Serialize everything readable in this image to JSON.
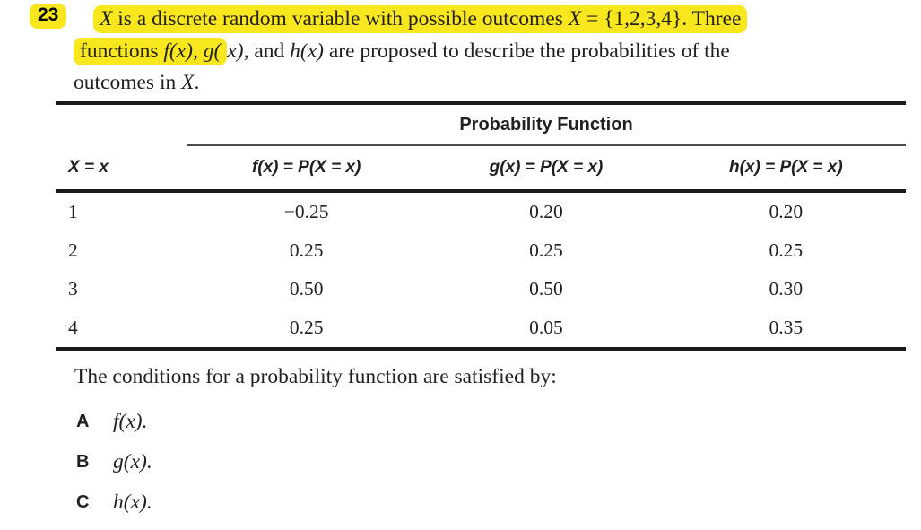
{
  "colors": {
    "highlight": "#f8e71c",
    "text": "#231f20",
    "rule": "#1a1a1a"
  },
  "question": {
    "number": "23",
    "line1": [
      {
        "t": "X"
      },
      {
        "t": " is a discrete random variable with possible outcomes "
      },
      {
        "t": "X"
      },
      {
        "t": " = {1,2,3,4}. Three"
      }
    ],
    "line2_highlighted": [
      {
        "t": "functions "
      },
      {
        "t": "f(x)"
      },
      {
        "t": ", "
      },
      {
        "t": "g("
      }
    ],
    "line2_rest": [
      {
        "t": "x)"
      },
      {
        "t": ", and "
      },
      {
        "t": "h(x)"
      },
      {
        "t": " are proposed to describe the probabilities of the"
      }
    ],
    "line3": [
      {
        "t": "outcomes in "
      },
      {
        "t": "X"
      },
      {
        "t": "."
      }
    ]
  },
  "table": {
    "group_header": "Probability Function",
    "columns": [
      "X = x",
      "f(x) = P(X = x)",
      "g(x) = P(X = x)",
      "h(x) = P(X = x)"
    ],
    "rows": [
      [
        "1",
        "−0.25",
        "0.20",
        "0.20"
      ],
      [
        "2",
        "0.25",
        "0.25",
        "0.25"
      ],
      [
        "3",
        "0.50",
        "0.50",
        "0.30"
      ],
      [
        "4",
        "0.25",
        "0.05",
        "0.35"
      ]
    ]
  },
  "prompt": "The conditions for a probability function are satisfied by:",
  "options": [
    {
      "label": "A",
      "text": "f(x)."
    },
    {
      "label": "B",
      "text": "g(x)."
    },
    {
      "label": "C",
      "text": "h(x)."
    }
  ]
}
